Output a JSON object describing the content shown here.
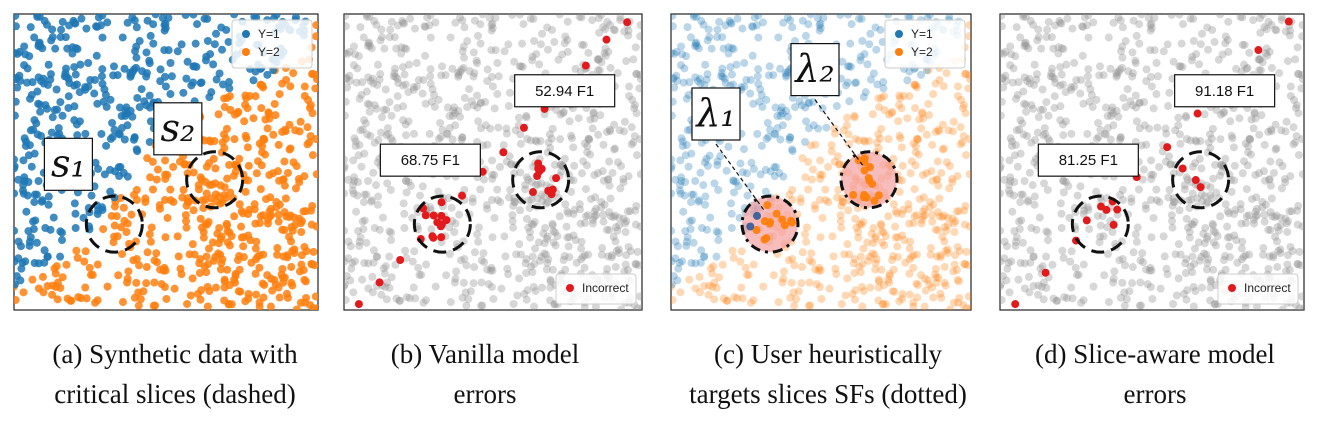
{
  "chart_data": [
    {
      "type": "scatter",
      "caption": "(a) Synthetic data with\ncritical slices (dashed)",
      "legend": [
        {
          "label": "Y=1",
          "color": "#1f77b4"
        },
        {
          "label": "Y=2",
          "color": "#ff7f0e"
        }
      ],
      "slice_labels": [
        {
          "label": "s₁",
          "slice": 1
        },
        {
          "label": "s₂",
          "slice": 2
        }
      ],
      "f1_labels": [],
      "legend_placement": "top-right"
    },
    {
      "type": "scatter",
      "caption": "(b) Vanilla model\nerrors",
      "legend": [
        {
          "label": "Incorrect",
          "color": "#e31a1c"
        }
      ],
      "f1_labels": [
        {
          "label": "68.75 F1",
          "slice": 1
        },
        {
          "label": "52.94 F1",
          "slice": 2
        }
      ],
      "legend_placement": "bottom-right"
    },
    {
      "type": "scatter",
      "caption": "(c) User heuristically\ntargets slices SFs (dotted)",
      "legend": [
        {
          "label": "Y=1",
          "color": "#1f77b4"
        },
        {
          "label": "Y=2",
          "color": "#ff7f0e"
        }
      ],
      "slice_labels": [
        {
          "label": "λ₁",
          "slice": 1
        },
        {
          "label": "λ₂",
          "slice": 2
        }
      ],
      "f1_labels": [],
      "legend_placement": "top-right"
    },
    {
      "type": "scatter",
      "caption": "(d) Slice-aware model\nerrors",
      "legend": [
        {
          "label": "Incorrect",
          "color": "#e31a1c"
        }
      ],
      "f1_labels": [
        {
          "label": "81.25 F1",
          "slice": 1
        },
        {
          "label": "91.18 F1",
          "slice": 2
        }
      ],
      "legend_placement": "bottom-right"
    }
  ],
  "colors": {
    "class1": "#1f77b4",
    "class2": "#ff7f0e",
    "neutral": "#8c8c8c",
    "incorrect": "#e31a1c",
    "slice_fill": "#f4a6a6"
  }
}
